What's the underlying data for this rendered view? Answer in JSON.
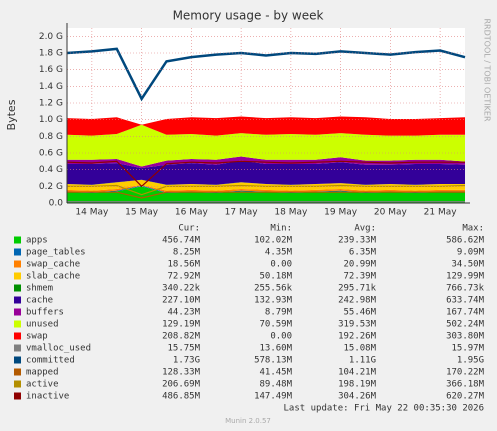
{
  "chart_data": {
    "type": "area",
    "title": "Memory usage - by week",
    "y_label": "Bytes",
    "side_text": "RRDTOOL / TOBI OETIKER",
    "categories": [
      null,
      "14 May",
      null,
      "15 May",
      null,
      "16 May",
      null,
      "17 May",
      null,
      "18 May",
      null,
      "19 May",
      null,
      "20 May",
      null,
      "21 May",
      null
    ],
    "ylim": [
      0,
      2.1
    ],
    "yticks": [
      {
        "value": 0,
        "label": "0.0"
      },
      {
        "value": 0.2,
        "label": "0.2 G"
      },
      {
        "value": 0.4,
        "label": "0.4 G"
      },
      {
        "value": 0.6,
        "label": "0.6 G"
      },
      {
        "value": 0.8,
        "label": "0.8 G"
      },
      {
        "value": 1.0,
        "label": "1.0 G"
      },
      {
        "value": 1.2,
        "label": "1.2 G"
      },
      {
        "value": 1.4,
        "label": "1.4 G"
      },
      {
        "value": 1.6,
        "label": "1.6 G"
      },
      {
        "value": 1.8,
        "label": "1.8 G"
      },
      {
        "value": 2.0,
        "label": "2.0 G"
      }
    ],
    "grid": true,
    "series": [
      {
        "name": "apps",
        "color": "#00cc00",
        "kind": "area",
        "values": [
          0.13,
          0.12,
          0.14,
          0.2,
          0.12,
          0.13,
          0.12,
          0.14,
          0.13,
          0.12,
          0.13,
          0.14,
          0.12,
          0.13,
          0.12,
          0.13,
          0.13
        ]
      },
      {
        "name": "page_tables",
        "color": "#0066b3",
        "kind": "stack",
        "values": [
          0.008,
          0.008,
          0.008,
          0.008,
          0.008,
          0.008,
          0.008,
          0.008,
          0.008,
          0.008,
          0.008,
          0.008,
          0.008,
          0.008,
          0.008,
          0.008,
          0.008
        ]
      },
      {
        "name": "swap_cache",
        "color": "#ff8000",
        "kind": "stack",
        "values": [
          0.02,
          0.02,
          0.02,
          0.01,
          0.02,
          0.02,
          0.02,
          0.02,
          0.02,
          0.02,
          0.02,
          0.02,
          0.02,
          0.02,
          0.02,
          0.02,
          0.02
        ]
      },
      {
        "name": "slab_cache",
        "color": "#ffcc00",
        "kind": "stack",
        "values": [
          0.07,
          0.07,
          0.08,
          0.06,
          0.07,
          0.07,
          0.07,
          0.08,
          0.07,
          0.07,
          0.07,
          0.07,
          0.07,
          0.07,
          0.07,
          0.07,
          0.07
        ]
      },
      {
        "name": "shmem",
        "color": "#008f00",
        "kind": "stack",
        "values": [
          0.0003,
          0.0003,
          0.0003,
          0.0003,
          0.0003,
          0.0003,
          0.0003,
          0.0003,
          0.0003,
          0.0003,
          0.0003,
          0.0003,
          0.0003,
          0.0003,
          0.0003,
          0.0003,
          0.0003
        ]
      },
      {
        "name": "cache",
        "color": "#330099",
        "kind": "stack",
        "values": [
          0.24,
          0.25,
          0.23,
          0.14,
          0.24,
          0.25,
          0.24,
          0.26,
          0.24,
          0.25,
          0.24,
          0.25,
          0.24,
          0.23,
          0.25,
          0.24,
          0.23
        ]
      },
      {
        "name": "buffers",
        "color": "#990099",
        "kind": "stack",
        "values": [
          0.05,
          0.05,
          0.05,
          0.02,
          0.05,
          0.05,
          0.06,
          0.05,
          0.05,
          0.05,
          0.05,
          0.06,
          0.05,
          0.05,
          0.05,
          0.05,
          0.04
        ]
      },
      {
        "name": "unused",
        "color": "#ccff00",
        "kind": "stack",
        "values": [
          0.3,
          0.29,
          0.3,
          0.5,
          0.31,
          0.3,
          0.29,
          0.28,
          0.3,
          0.31,
          0.3,
          0.29,
          0.31,
          0.3,
          0.29,
          0.3,
          0.32
        ]
      },
      {
        "name": "swap",
        "color": "#ff0000",
        "kind": "stack",
        "values": [
          0.2,
          0.2,
          0.2,
          0.0,
          0.19,
          0.2,
          0.21,
          0.2,
          0.2,
          0.2,
          0.2,
          0.2,
          0.21,
          0.2,
          0.2,
          0.2,
          0.21
        ]
      },
      {
        "name": "vmalloc_used",
        "color": "#808080",
        "kind": "line",
        "values": [
          0.016,
          0.016,
          0.016,
          0.014,
          0.016,
          0.016,
          0.016,
          0.016,
          0.016,
          0.016,
          0.016,
          0.016,
          0.016,
          0.016,
          0.016,
          0.016,
          0.016
        ]
      },
      {
        "name": "committed",
        "color": "#00487d",
        "kind": "line",
        "values": [
          1.8,
          1.82,
          1.85,
          1.25,
          1.7,
          1.75,
          1.78,
          1.8,
          1.77,
          1.8,
          1.79,
          1.82,
          1.8,
          1.78,
          1.81,
          1.83,
          1.75
        ]
      },
      {
        "name": "mapped",
        "color": "#b35a00",
        "kind": "line",
        "values": [
          0.13,
          0.13,
          0.13,
          0.06,
          0.13,
          0.13,
          0.13,
          0.13,
          0.13,
          0.13,
          0.13,
          0.13,
          0.13,
          0.13,
          0.13,
          0.13,
          0.13
        ]
      },
      {
        "name": "active",
        "color": "#b38f00",
        "kind": "line",
        "values": [
          0.2,
          0.2,
          0.21,
          0.1,
          0.2,
          0.2,
          0.2,
          0.21,
          0.2,
          0.2,
          0.2,
          0.21,
          0.2,
          0.2,
          0.2,
          0.2,
          0.21
        ]
      },
      {
        "name": "inactive",
        "color": "#8f0000",
        "kind": "line",
        "values": [
          0.49,
          0.48,
          0.5,
          0.2,
          0.47,
          0.49,
          0.48,
          0.5,
          0.49,
          0.48,
          0.49,
          0.5,
          0.49,
          0.48,
          0.49,
          0.49,
          0.49
        ]
      }
    ],
    "legend_table": {
      "columns": [
        "Cur:",
        "Min:",
        "Avg:",
        "Max:"
      ],
      "rows": [
        [
          "456.74M",
          "102.02M",
          "239.33M",
          "586.62M"
        ],
        [
          "8.25M",
          "4.35M",
          "6.35M",
          "9.09M"
        ],
        [
          "18.56M",
          "0.00",
          "20.99M",
          "34.50M"
        ],
        [
          "72.92M",
          "50.18M",
          "72.39M",
          "129.99M"
        ],
        [
          "340.22k",
          "255.56k",
          "295.71k",
          "766.73k"
        ],
        [
          "227.10M",
          "132.93M",
          "242.98M",
          "633.74M"
        ],
        [
          "44.23M",
          "8.79M",
          "55.46M",
          "167.74M"
        ],
        [
          "129.19M",
          "70.59M",
          "319.53M",
          "502.24M"
        ],
        [
          "208.82M",
          "0.00",
          "192.26M",
          "303.80M"
        ],
        [
          "15.75M",
          "13.60M",
          "15.08M",
          "15.97M"
        ],
        [
          "1.73G",
          "578.13M",
          "1.11G",
          "1.95G"
        ],
        [
          "128.33M",
          "41.45M",
          "104.21M",
          "170.22M"
        ],
        [
          "206.69M",
          "89.48M",
          "198.19M",
          "366.18M"
        ],
        [
          "486.85M",
          "147.49M",
          "304.26M",
          "620.27M"
        ]
      ]
    },
    "last_update": "Last update: Fri May 22 00:35:30 2026",
    "footer": "Munin 2.0.57"
  }
}
